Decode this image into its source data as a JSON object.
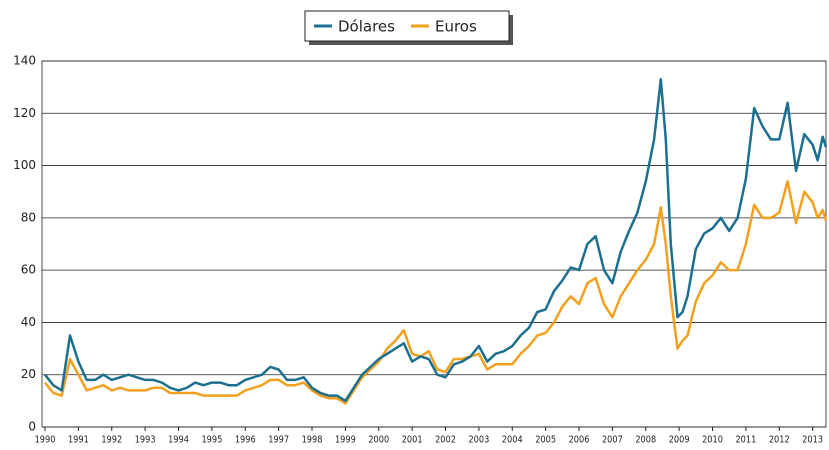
{
  "chart_data": {
    "type": "line",
    "x": [
      1990,
      1990.25,
      1990.5,
      1990.75,
      1991,
      1991.25,
      1991.5,
      1991.75,
      1992,
      1992.25,
      1992.5,
      1992.75,
      1993,
      1993.25,
      1993.5,
      1993.75,
      1994,
      1994.25,
      1994.5,
      1994.75,
      1995,
      1995.25,
      1995.5,
      1995.75,
      1996,
      1996.25,
      1996.5,
      1996.75,
      1997,
      1997.25,
      1997.5,
      1997.75,
      1998,
      1998.25,
      1998.5,
      1998.75,
      1999,
      1999.25,
      1999.5,
      1999.75,
      2000,
      2000.25,
      2000.5,
      2000.75,
      2001,
      2001.25,
      2001.5,
      2001.75,
      2002,
      2002.25,
      2002.5,
      2002.75,
      2003,
      2003.25,
      2003.5,
      2003.75,
      2004,
      2004.25,
      2004.5,
      2004.75,
      2005,
      2005.25,
      2005.5,
      2005.75,
      2006,
      2006.25,
      2006.5,
      2006.75,
      2007,
      2007.25,
      2007.5,
      2007.75,
      2008,
      2008.25,
      2008.45,
      2008.6,
      2008.75,
      2008.95,
      2009.1,
      2009.25,
      2009.5,
      2009.75,
      2010,
      2010.25,
      2010.5,
      2010.75,
      2011,
      2011.25,
      2011.5,
      2011.75,
      2012,
      2012.25,
      2012.5,
      2012.75,
      2013,
      2013.15,
      2013.3,
      2013.4
    ],
    "series": [
      {
        "name": "Dólares",
        "color": "#1c6f8f",
        "values": [
          20,
          16,
          14,
          35,
          25,
          18,
          18,
          20,
          18,
          19,
          20,
          19,
          18,
          18,
          17,
          15,
          14,
          15,
          17,
          16,
          17,
          17,
          16,
          16,
          18,
          19,
          20,
          23,
          22,
          18,
          18,
          19,
          15,
          13,
          12,
          12,
          10,
          15,
          20,
          23,
          26,
          28,
          30,
          32,
          25,
          27,
          26,
          20,
          19,
          24,
          25,
          27,
          31,
          25,
          28,
          29,
          31,
          35,
          38,
          44,
          45,
          52,
          56,
          61,
          60,
          70,
          73,
          60,
          55,
          67,
          75,
          82,
          94,
          110,
          133,
          110,
          70,
          42,
          44,
          50,
          68,
          74,
          76,
          80,
          75,
          80,
          95,
          122,
          115,
          110,
          110,
          124,
          98,
          112,
          108,
          102,
          111,
          107
        ]
      },
      {
        "name": "Euros",
        "color": "#f2a01e",
        "values": [
          17,
          13,
          12,
          26,
          20,
          14,
          15,
          16,
          14,
          15,
          14,
          14,
          14,
          15,
          15,
          13,
          13,
          13,
          13,
          12,
          12,
          12,
          12,
          12,
          14,
          15,
          16,
          18,
          18,
          16,
          16,
          17,
          14,
          12,
          11,
          11,
          9,
          14,
          19,
          22,
          25,
          30,
          33,
          37,
          28,
          27,
          29,
          22,
          21,
          26,
          26,
          27,
          28,
          22,
          24,
          24,
          24,
          28,
          31,
          35,
          36,
          40,
          46,
          50,
          47,
          55,
          57,
          47,
          42,
          50,
          55,
          60,
          64,
          70,
          84,
          70,
          50,
          30,
          33,
          35,
          48,
          55,
          58,
          63,
          60,
          60,
          70,
          85,
          80,
          80,
          82,
          94,
          78,
          90,
          86,
          80,
          83,
          79
        ]
      }
    ],
    "xlim": [
      1990,
      2013.4
    ],
    "xticks": [
      1990,
      1991,
      1992,
      1993,
      1994,
      1995,
      1996,
      1997,
      1998,
      1999,
      2000,
      2001,
      2002,
      2003,
      2004,
      2005,
      2006,
      2007,
      2008,
      2009,
      2010,
      2011,
      2012,
      2013
    ],
    "ylim": [
      0,
      140
    ],
    "yticks": [
      0,
      20,
      40,
      60,
      80,
      100,
      120,
      140
    ],
    "grid": true,
    "legend": "top"
  }
}
